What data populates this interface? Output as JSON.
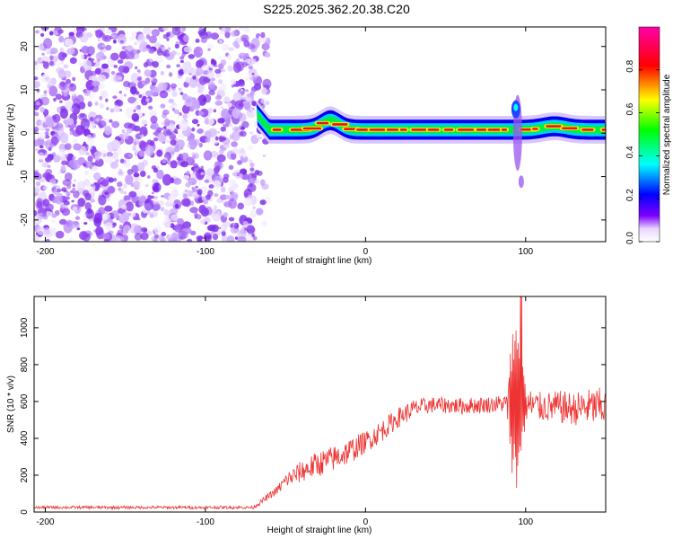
{
  "title": "S225.2025.362.20.38.C20",
  "chart_data": [
    {
      "type": "heatmap",
      "panel": "spectrogram",
      "xlabel": "Height of straight line (km)",
      "ylabel": "Frequency (Hz)",
      "xlim": [
        -207,
        150
      ],
      "ylim": [
        -25,
        24.5
      ],
      "xticks": [
        -200,
        -100,
        0,
        100
      ],
      "xtick_labels": [
        "-200",
        "-100",
        "0",
        "100"
      ],
      "yticks": [
        -20,
        -10,
        0,
        10,
        20
      ],
      "ytick_labels": [
        "-20",
        "-10",
        "0",
        "10",
        "20"
      ],
      "noise_region_x": [
        -207,
        -61
      ],
      "signal_onset_x": -68,
      "line_frequency_hz": 0.8,
      "burst": {
        "x": 95,
        "freq_range": [
          -12,
          8
        ]
      },
      "colorbar": {
        "label": "Normalized spectral amplitude",
        "range": [
          0.0,
          1.0
        ],
        "ticks": [
          0.0,
          0.2,
          0.4,
          0.6,
          0.8
        ],
        "tick_labels": [
          "0.0",
          "0.2",
          "0.4",
          "0.6",
          "0.8"
        ],
        "colors": [
          "#ffffff",
          "#8000ff",
          "#0000ff",
          "#00ffff",
          "#00ff00",
          "#ffff00",
          "#ff0000",
          "#ff00aa"
        ]
      }
    },
    {
      "type": "line",
      "panel": "snr",
      "xlabel": "Height of straight line (km)",
      "ylabel": "SNR (10 * v/v)",
      "xlim": [
        -207,
        150
      ],
      "ylim": [
        0,
        1170
      ],
      "xticks": [
        -200,
        -100,
        0,
        100
      ],
      "xtick_labels": [
        "-200",
        "-100",
        "0",
        "100"
      ],
      "yticks": [
        0,
        200,
        400,
        600,
        800,
        1000
      ],
      "ytick_labels": [
        "0",
        "200",
        "400",
        "600",
        "800",
        "1000"
      ],
      "series": [
        {
          "name": "SNR",
          "color": "#ee3333",
          "x": [
            -207,
            -150,
            -100,
            -70,
            -55,
            -50,
            -40,
            -30,
            -20,
            -10,
            0,
            10,
            20,
            30,
            40,
            50,
            60,
            70,
            80,
            88,
            92,
            95,
            100,
            110,
            120,
            130,
            140,
            150
          ],
          "mean": [
            25,
            25,
            25,
            25,
            120,
            170,
            220,
            260,
            290,
            330,
            380,
            440,
            510,
            560,
            580,
            580,
            575,
            580,
            585,
            590,
            560,
            550,
            580,
            570,
            570,
            560,
            570,
            570
          ],
          "amp": [
            8,
            8,
            8,
            8,
            25,
            40,
            60,
            70,
            70,
            70,
            60,
            60,
            55,
            50,
            45,
            45,
            45,
            45,
            45,
            50,
            450,
            500,
            100,
            80,
            90,
            90,
            100,
            110
          ]
        }
      ]
    }
  ]
}
